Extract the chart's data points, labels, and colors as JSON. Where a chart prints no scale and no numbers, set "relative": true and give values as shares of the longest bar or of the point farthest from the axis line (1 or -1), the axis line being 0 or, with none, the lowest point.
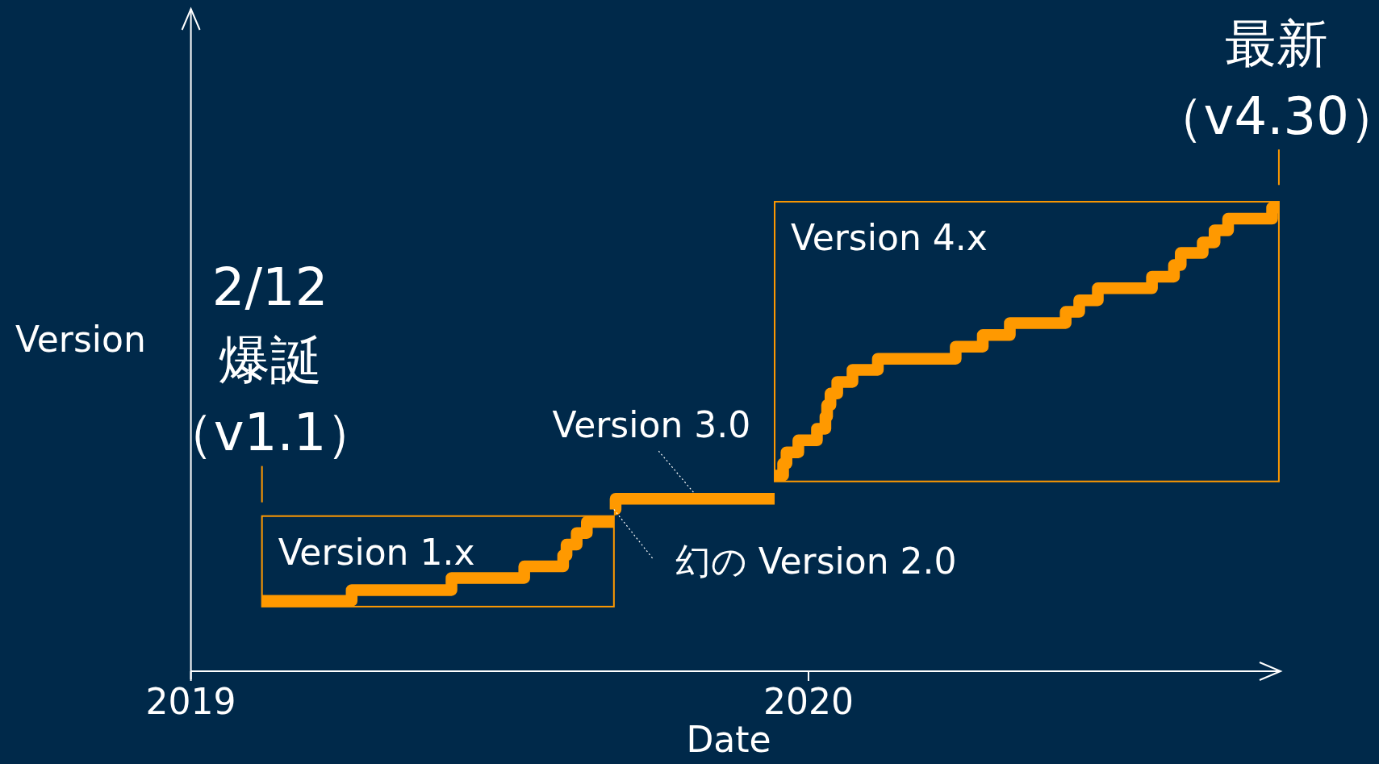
{
  "chart_data": {
    "type": "step",
    "xlabel": "Date",
    "ylabel": "Version",
    "relative": true,
    "xlim": [
      "2019-01-01",
      "2020-10-06"
    ],
    "xticks": [
      "2019",
      "2020"
    ],
    "series": [
      {
        "name": "Version 1.x",
        "color": "#ff9900",
        "x": [
          "2019-02-12",
          "2019-04-06",
          "2019-06-04",
          "2019-07-17",
          "2019-08-09",
          "2019-08-11",
          "2019-08-17",
          "2019-08-23",
          "2019-09-08"
        ],
        "values": [
          0.152,
          0.175,
          0.201,
          0.226,
          0.25,
          0.273,
          0.298,
          0.322,
          0.322
        ]
      },
      {
        "color": "#ff9900",
        "x": [
          "2019-09-08",
          "2019-09-09",
          "2019-12-12"
        ],
        "values": [
          0.349,
          0.372,
          0.372
        ]
      },
      {
        "name": "Version 4.x",
        "color": "#ff9900",
        "x": [
          "2019-12-12",
          "2019-12-17",
          "2019-12-19",
          "2019-12-26",
          "2020-01-06",
          "2020-01-11",
          "2020-01-12",
          "2020-01-14",
          "2020-01-18",
          "2020-01-27",
          "2020-02-11",
          "2020-03-28",
          "2020-04-13",
          "2020-04-29",
          "2020-06-01",
          "2020-06-09",
          "2020-06-20",
          "2020-07-22",
          "2020-08-04",
          "2020-08-08",
          "2020-08-21",
          "2020-08-28",
          "2020-09-05",
          "2020-10-01",
          "2020-10-05"
        ],
        "values": [
          0.422,
          0.448,
          0.472,
          0.498,
          0.523,
          0.549,
          0.574,
          0.599,
          0.624,
          0.65,
          0.674,
          0.7,
          0.725,
          0.751,
          0.775,
          0.8,
          0.826,
          0.851,
          0.876,
          0.902,
          0.925,
          0.951,
          0.976,
          1,
          1
        ]
      }
    ],
    "annotations": [
      {
        "text": "2/12爆誕（v1.1）",
        "x": "2019-02-12",
        "y": 0.152
      },
      {
        "text": "幻の Version 2.0",
        "x": "2019-09-08",
        "y": 0.349
      },
      {
        "text": "Version 3.0",
        "x": "2019-10-25",
        "y": 0.372
      },
      {
        "text": "最新（v4.30）",
        "x": "2020-10-05",
        "y": 1
      }
    ]
  }
}
